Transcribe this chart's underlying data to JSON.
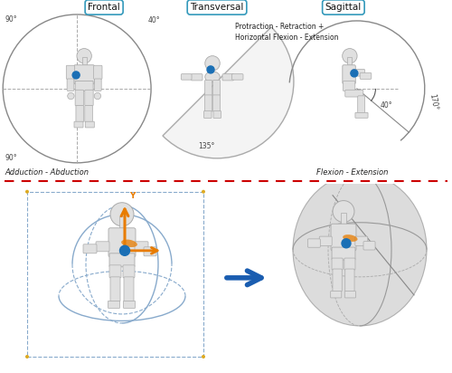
{
  "bg_color": "#ffffff",
  "dashed_line_color": "#cc0000",
  "top_labels": [
    "Frontal",
    "Transversal",
    "Sagittal"
  ],
  "circle_color": "#555555",
  "arc_color": "#555555",
  "frontal_motion_label": "Adduction - Abduction",
  "transversal_motion_label": "Protraction - Retraction +\nHorizontal Flexion - Extension",
  "sagittal_motion_label": "Flexion - Extension",
  "shoulder_dot_color": "#1a6fb5",
  "arrow_color_orange": "#e87c00",
  "arrow_color_blue": "#1a5db0",
  "grid_line_color": "#88aacc",
  "mannequin_face": "#d8d8d8",
  "mannequin_edge": "#aaaaaa",
  "body_color": "#e0e0e0",
  "workspace_color": "#c8c8c8"
}
